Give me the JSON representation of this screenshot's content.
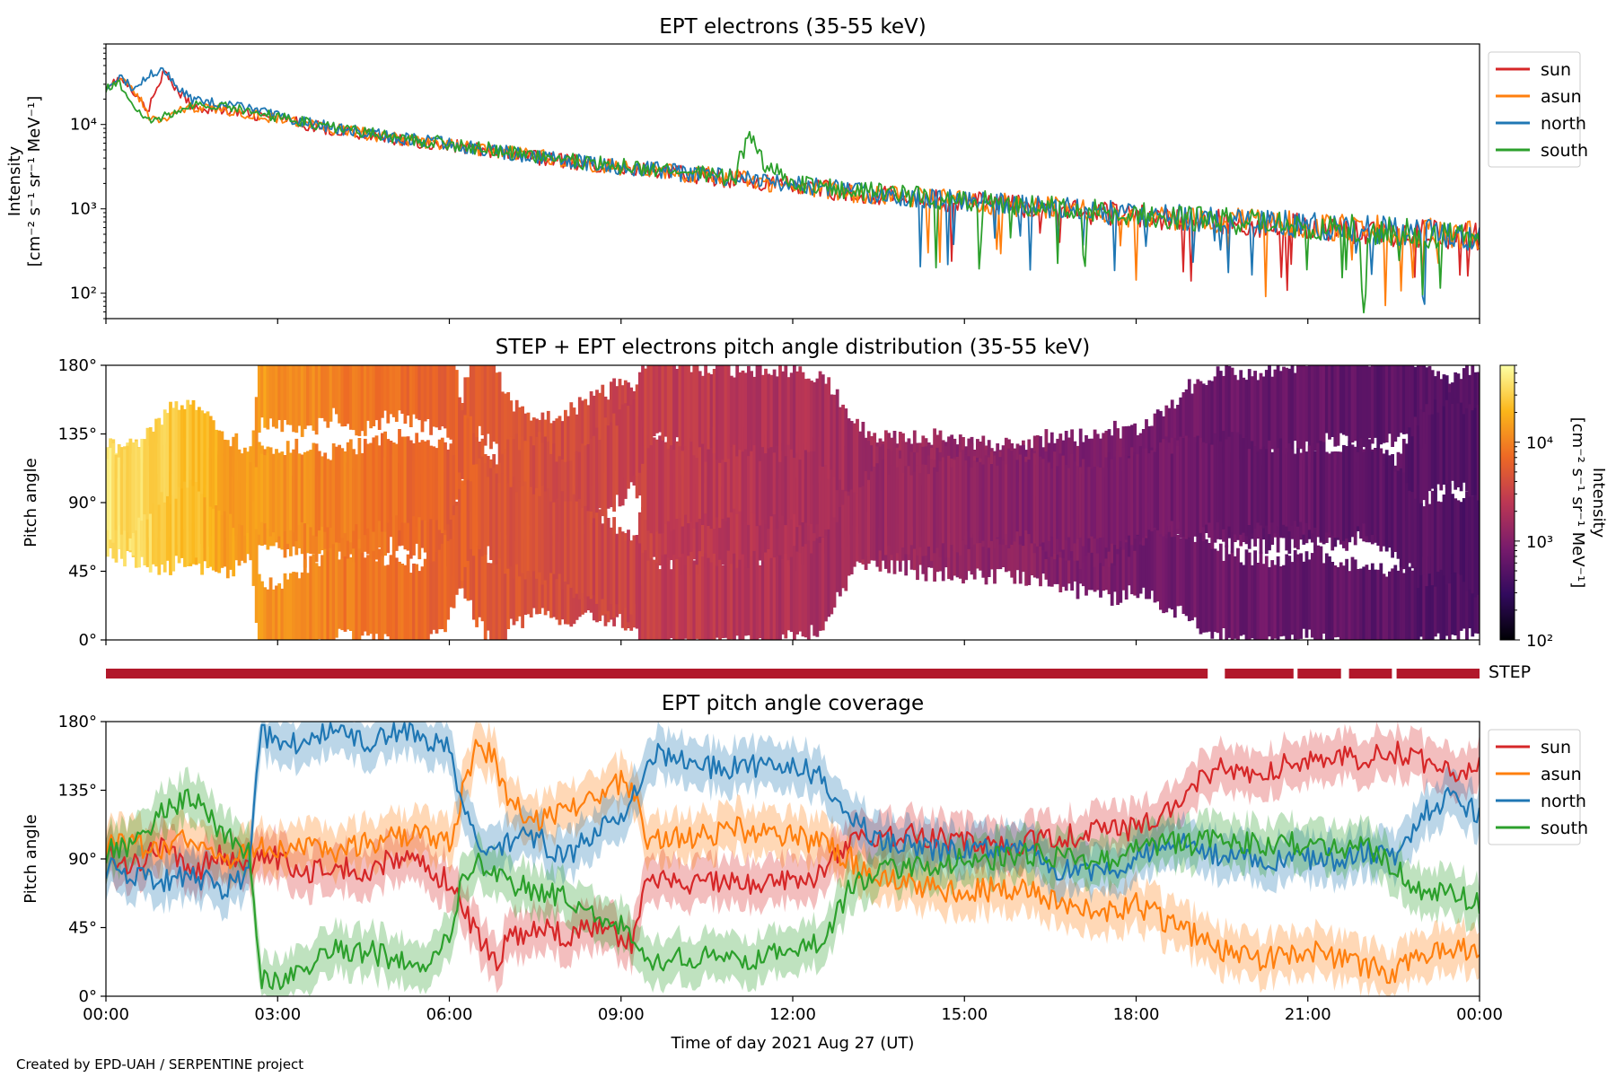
{
  "footer": "Created by EPD-UAH / SERPENTINE project",
  "chart_data": [
    {
      "type": "line",
      "title": "EPT electrons (35-55 keV)",
      "ylabel_lines": [
        "Intensity",
        "[cm⁻² s⁻¹ sr⁻¹ MeV⁻¹]"
      ],
      "yscale": "log",
      "ylim": [
        50,
        90000
      ],
      "yticks": [
        {
          "value": 100,
          "label": "10²"
        },
        {
          "value": 1000,
          "label": "10³"
        },
        {
          "value": 10000,
          "label": "10⁴"
        }
      ],
      "xlim": [
        0,
        24
      ],
      "legend_location": "outside right-top",
      "x": [
        0,
        0.25,
        0.5,
        0.75,
        1,
        1.25,
        1.5,
        2,
        3,
        4,
        5,
        6,
        7,
        8,
        9,
        10,
        11,
        11.25,
        11.5,
        12,
        13,
        14,
        15,
        16,
        17,
        18,
        19,
        20,
        21,
        22,
        23,
        24
      ],
      "series": [
        {
          "name": "sun",
          "color": "#d62728",
          "values": [
            28000,
            35000,
            22000,
            14000,
            40000,
            25000,
            16000,
            15000,
            11500,
            8500,
            6800,
            5600,
            4500,
            3700,
            3050,
            2600,
            2250,
            2150,
            2050,
            1850,
            1550,
            1350,
            1200,
            1070,
            930,
            820,
            740,
            670,
            620,
            560,
            500,
            460
          ]
        },
        {
          "name": "asun",
          "color": "#ff7f0e",
          "values": [
            30000,
            33000,
            25000,
            12000,
            11000,
            15000,
            16000,
            15000,
            11800,
            8700,
            6900,
            5700,
            4600,
            3750,
            3100,
            2650,
            2300,
            2200,
            2080,
            1880,
            1580,
            1380,
            1220,
            1090,
            950,
            840,
            760,
            690,
            640,
            580,
            520,
            480
          ]
        },
        {
          "name": "north",
          "color": "#1f77b4",
          "values": [
            29000,
            36000,
            26000,
            40000,
            44000,
            26000,
            20000,
            18000,
            12500,
            9000,
            7000,
            5800,
            4650,
            3800,
            3150,
            2700,
            2350,
            2230,
            2100,
            1900,
            1600,
            1400,
            1240,
            1100,
            960,
            850,
            770,
            700,
            640,
            580,
            520,
            480
          ]
        },
        {
          "name": "south",
          "color": "#2ca02c",
          "values": [
            27000,
            30000,
            16000,
            11000,
            12000,
            15000,
            17000,
            16500,
            12200,
            9200,
            7100,
            5900,
            4700,
            3850,
            3200,
            2700,
            2350,
            7000,
            3200,
            2050,
            1650,
            1420,
            1260,
            1110,
            970,
            860,
            760,
            690,
            630,
            570,
            510,
            470
          ]
        }
      ],
      "xtick_labels_hidden": true
    },
    {
      "type": "heatmap",
      "title": "STEP + EPT electrons pitch angle distribution (35-55 keV)",
      "ylabel": "Pitch angle",
      "ylim": [
        0,
        180
      ],
      "yticks": [
        {
          "value": 0,
          "label": "0°"
        },
        {
          "value": 45,
          "label": "45°"
        },
        {
          "value": 90,
          "label": "90°"
        },
        {
          "value": 135,
          "label": "135°"
        },
        {
          "value": 180,
          "label": "180°"
        }
      ],
      "xlim": [
        0,
        24
      ],
      "colorbar": {
        "label_lines": [
          "Intensity",
          "[cm⁻² s⁻¹ sr⁻¹ MeV⁻¹]"
        ],
        "scale": "log",
        "range": [
          100,
          60000
        ],
        "ticks": [
          {
            "value": 100,
            "label": "10²"
          },
          {
            "value": 1000,
            "label": "10³"
          },
          {
            "value": 10000,
            "label": "10⁴"
          }
        ],
        "colormap": "inferno",
        "colormap_stops": [
          "#000004",
          "#320a5e",
          "#781b6c",
          "#bc3754",
          "#ed6925",
          "#fbb61a",
          "#fcffa4"
        ]
      },
      "time_intensity": {
        "x": [
          0,
          1,
          2,
          3,
          4,
          5,
          6,
          7,
          8,
          9,
          10,
          11,
          12,
          13,
          14,
          15,
          16,
          17,
          18,
          19,
          20,
          21,
          22,
          23,
          24
        ],
        "intensity": [
          40000,
          30000,
          16000,
          12500,
          9500,
          7500,
          5900,
          4700,
          3900,
          3200,
          2700,
          2300,
          1950,
          1650,
          1400,
          1230,
          1080,
          950,
          830,
          750,
          680,
          630,
          570,
          510,
          470
        ]
      },
      "xtick_labels_hidden": true
    },
    {
      "type": "bar",
      "label": "STEP",
      "color": "#b2182b",
      "segments_hours": [
        [
          0,
          19.25
        ],
        [
          19.55,
          20.75
        ],
        [
          20.82,
          21.58
        ],
        [
          21.72,
          22.47
        ],
        [
          22.55,
          24
        ]
      ]
    },
    {
      "type": "line",
      "title": "EPT pitch angle coverage",
      "ylabel": "Pitch angle",
      "ylim": [
        0,
        180
      ],
      "yticks": [
        {
          "value": 0,
          "label": "0°"
        },
        {
          "value": 45,
          "label": "45°"
        },
        {
          "value": 90,
          "label": "90°"
        },
        {
          "value": 135,
          "label": "135°"
        },
        {
          "value": 180,
          "label": "180°"
        }
      ],
      "xlim": [
        0,
        24
      ],
      "xlabel": "Time of day 2021 Aug 27 (UT)",
      "xticks": [
        {
          "value": 0,
          "label": "00:00"
        },
        {
          "value": 3,
          "label": "03:00"
        },
        {
          "value": 6,
          "label": "06:00"
        },
        {
          "value": 9,
          "label": "09:00"
        },
        {
          "value": 12,
          "label": "12:00"
        },
        {
          "value": 15,
          "label": "15:00"
        },
        {
          "value": 18,
          "label": "18:00"
        },
        {
          "value": 21,
          "label": "21:00"
        },
        {
          "value": 24,
          "label": "00:00"
        }
      ],
      "legend_location": "outside right-top",
      "band_halfwidth_deg": 15,
      "x": [
        0,
        0.5,
        1,
        1.5,
        2,
        2.5,
        2.7,
        3,
        3.5,
        4,
        4.5,
        5,
        5.5,
        6,
        6.2,
        6.5,
        6.8,
        7,
        7.5,
        8,
        8.5,
        9,
        9.2,
        9.5,
        10,
        10.5,
        11,
        11.5,
        12,
        12.5,
        13,
        13.5,
        14,
        14.5,
        15,
        15.5,
        16,
        16.5,
        17,
        17.5,
        18,
        18.5,
        19,
        19.5,
        20,
        20.5,
        21,
        21.5,
        22,
        22.5,
        23,
        23.5,
        24
      ],
      "series": [
        {
          "name": "sun",
          "color": "#d62728",
          "values": [
            95,
            85,
            100,
            80,
            95,
            85,
            95,
            90,
            80,
            85,
            80,
            90,
            85,
            75,
            60,
            40,
            20,
            35,
            45,
            40,
            45,
            40,
            35,
            80,
            75,
            75,
            75,
            75,
            75,
            80,
            100,
            105,
            105,
            105,
            100,
            100,
            100,
            105,
            105,
            110,
            110,
            120,
            140,
            150,
            145,
            150,
            155,
            160,
            155,
            160,
            155,
            145,
            150
          ]
        },
        {
          "name": "asun",
          "color": "#ff7f0e",
          "values": [
            100,
            100,
            95,
            105,
            90,
            95,
            100,
            95,
            100,
            95,
            100,
            105,
            105,
            100,
            130,
            165,
            155,
            130,
            115,
            120,
            130,
            140,
            135,
            100,
            105,
            105,
            110,
            105,
            105,
            100,
            90,
            75,
            75,
            70,
            70,
            70,
            70,
            65,
            60,
            55,
            60,
            50,
            40,
            30,
            25,
            25,
            30,
            25,
            20,
            15,
            25,
            30,
            30
          ]
        },
        {
          "name": "north",
          "color": "#1f77b4",
          "values": [
            85,
            80,
            75,
            80,
            70,
            80,
            170,
            170,
            165,
            175,
            165,
            175,
            170,
            165,
            130,
            105,
            90,
            100,
            105,
            90,
            105,
            120,
            130,
            160,
            155,
            150,
            150,
            150,
            150,
            145,
            120,
            100,
            100,
            95,
            95,
            95,
            95,
            85,
            80,
            80,
            90,
            100,
            100,
            90,
            90,
            90,
            90,
            90,
            95,
            90,
            120,
            130,
            120
          ]
        },
        {
          "name": "south",
          "color": "#2ca02c",
          "values": [
            95,
            100,
            120,
            130,
            110,
            95,
            10,
            10,
            20,
            30,
            30,
            25,
            20,
            40,
            70,
            90,
            80,
            75,
            70,
            65,
            55,
            45,
            40,
            20,
            25,
            25,
            25,
            25,
            30,
            35,
            70,
            85,
            85,
            85,
            90,
            90,
            95,
            90,
            90,
            90,
            95,
            100,
            100,
            105,
            100,
            100,
            100,
            95,
            100,
            85,
            65,
            70,
            60
          ]
        }
      ]
    }
  ]
}
